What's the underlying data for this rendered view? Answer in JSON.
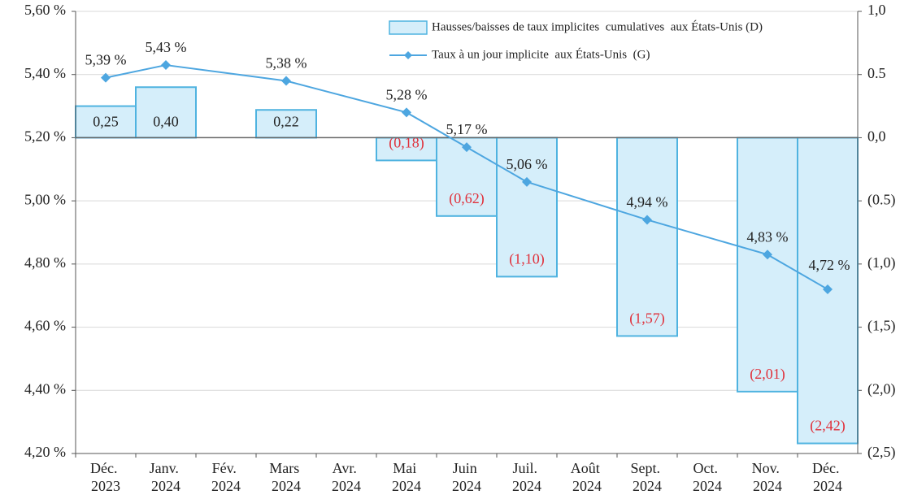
{
  "chart_data": {
    "type": "bar+line",
    "categories": [
      "Déc. 2023",
      "Janv. 2024",
      "Fév. 2024",
      "Mars 2024",
      "Avr. 2024",
      "Mai 2024",
      "Juin 2024",
      "Juil. 2024",
      "Août 2024",
      "Sept. 2024",
      "Oct. 2024",
      "Nov. 2024",
      "Déc. 2024"
    ],
    "series": [
      {
        "name": "Hausses/baisses de taux implicites  cumulatives  aux États-Unis (D)",
        "type": "bar",
        "axis": "y2",
        "color": "#d5eefa",
        "edge_color": "#4fb3e0",
        "values": [
          0.25,
          0.4,
          null,
          0.22,
          null,
          -0.18,
          -0.62,
          -1.1,
          null,
          -1.57,
          null,
          -2.01,
          -2.42
        ],
        "value_labels": [
          "0,25",
          "0,40",
          null,
          "0,22",
          null,
          "(0,18)",
          "(0,62)",
          "(1,10)",
          null,
          "(1,57)",
          null,
          "(2,01)",
          "(2,42)"
        ]
      },
      {
        "name": "Taux à un jour implicite  aux États-Unis  (G)",
        "type": "line",
        "axis": "y",
        "color": "#4da6e0",
        "values": [
          5.39,
          5.43,
          null,
          5.38,
          null,
          5.28,
          5.17,
          5.06,
          null,
          4.94,
          null,
          4.83,
          4.72
        ],
        "value_labels": [
          "5,39 %",
          "5,43 %",
          null,
          "5,38 %",
          null,
          "5,28 %",
          "5,17 %",
          "5,06 %",
          null,
          "4,94 %",
          null,
          "4,83 %",
          "4,72 %"
        ]
      }
    ],
    "ylim": [
      4.2,
      5.6
    ],
    "yticks": [
      {
        "value": 4.2,
        "label": "4,20 %"
      },
      {
        "value": 4.4,
        "label": "4,40 %"
      },
      {
        "value": 4.6,
        "label": "4,60 %"
      },
      {
        "value": 4.8,
        "label": "4,80 %"
      },
      {
        "value": 5.0,
        "label": "5,00 %"
      },
      {
        "value": 5.2,
        "label": "5,20 %"
      },
      {
        "value": 5.4,
        "label": "5,40 %"
      },
      {
        "value": 5.6,
        "label": "5,60 %"
      }
    ],
    "y2lim": [
      -2.5,
      1.0
    ],
    "y2ticks": [
      {
        "value": -2.5,
        "label": "(2,5)"
      },
      {
        "value": -2.0,
        "label": "(2,0)"
      },
      {
        "value": -1.5,
        "label": "(1,5)"
      },
      {
        "value": -1.0,
        "label": "(1,0)"
      },
      {
        "value": -0.5,
        "label": "(0.5)"
      },
      {
        "value": 0.0,
        "label": "0,0"
      },
      {
        "value": 0.5,
        "label": "0.5"
      },
      {
        "value": 1.0,
        "label": "1,0"
      }
    ],
    "grid": true,
    "legend": "upper right",
    "negative_label_color": "#e0303a"
  }
}
